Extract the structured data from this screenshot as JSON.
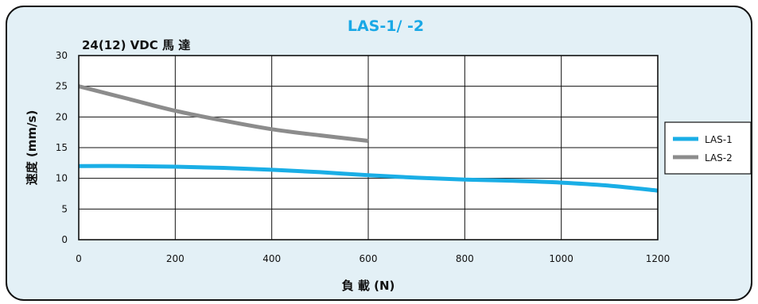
{
  "colors": {
    "panel_bg": "#e3f0f6",
    "panel_border": "#111111",
    "title": "#19a8e6",
    "LAS-1": "#1aaee6",
    "LAS-2": "#8c8c8c"
  },
  "chart_data": {
    "type": "line",
    "title": "LAS-1/ -2",
    "subtitle": "24(12) VDC 馬 達",
    "xlabel": "負 載 (N)",
    "ylabel": "速度 (mm/s)",
    "xlim": [
      0,
      1200
    ],
    "ylim": [
      0,
      30
    ],
    "xticks": [
      "0",
      "200",
      "400",
      "600",
      "800",
      "1000",
      "1200"
    ],
    "yticks": [
      "0",
      "5",
      "10",
      "15",
      "20",
      "25",
      "30"
    ],
    "grid": true,
    "legend_position": "right",
    "series": [
      {
        "name": "LAS-1",
        "color": "#1aaee6",
        "x": [
          0,
          100,
          200,
          300,
          400,
          500,
          600,
          700,
          800,
          900,
          1000,
          1100,
          1200
        ],
        "y": [
          12,
          12,
          11.9,
          11.7,
          11.4,
          11,
          10.5,
          10.1,
          9.8,
          9.6,
          9.3,
          8.8,
          8
        ]
      },
      {
        "name": "LAS-2",
        "color": "#8c8c8c",
        "x": [
          0,
          100,
          200,
          300,
          400,
          500,
          600
        ],
        "y": [
          25,
          23,
          21,
          19.4,
          18,
          17,
          16.1
        ]
      }
    ]
  }
}
